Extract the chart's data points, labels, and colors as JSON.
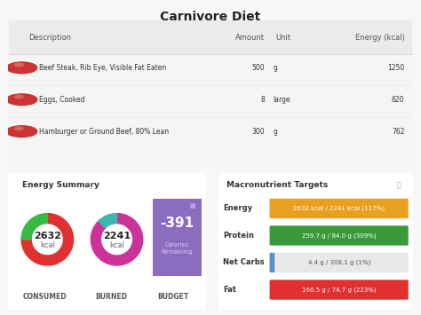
{
  "title": "Carnivore Diet",
  "bg_color": "#f7f7f7",
  "foods": [
    {
      "name": "Beef Steak, Rib Eye, Visible Fat Eaten",
      "amount": "500",
      "unit": "g",
      "energy": "1250"
    },
    {
      "name": "Eggs, Cooked",
      "amount": "8",
      "unit": "large",
      "energy": "620"
    },
    {
      "name": "Hamburger or Ground Beef, 80% Lean",
      "amount": "300",
      "unit": "g",
      "energy": "762"
    }
  ],
  "energy_summary_title": "Energy Summary",
  "consumed_kcal": "2632",
  "burned_kcal": "2241",
  "budget_kcal": "-391",
  "consumed_label": "CONSUMED",
  "burned_label": "BURNED",
  "budget_section_label": "BUDGET",
  "macro_title": "Macronutrient Targets",
  "macros": [
    {
      "label": "Energy",
      "text": "2632 kcal / 2241 kcal (117%)",
      "color": "#e8a020",
      "pct": 1.0,
      "text_color": "white"
    },
    {
      "label": "Protein",
      "text": "259.7 g / 84.0 g (309%)",
      "color": "#3a9a3a",
      "pct": 1.0,
      "text_color": "white"
    },
    {
      "label": "Net Carbs",
      "text": "4.4 g / 308.1 g (1%)",
      "color": "#e8e8e8",
      "pct": 0.014,
      "bar_color": "#5b8fc9",
      "text_color": "#555555"
    },
    {
      "label": "Fat",
      "text": "166.5 g / 74.7 g (223%)",
      "color": "#e03030",
      "pct": 1.0,
      "text_color": "white"
    }
  ],
  "consumed_ring_colors": [
    "#e03030",
    "#3ab844"
  ],
  "consumed_ring_angles": [
    270,
    90
  ],
  "burned_ring_colors": [
    "#cc3399",
    "#3ab8b0"
  ],
  "burned_ring_angles": [
    315,
    45
  ],
  "budget_bg": "#8b6cbf",
  "food_icon_color": "#cc3333",
  "panel_edge": "#dddddd",
  "panel_bg": "white",
  "table_bg": "#f5f5f5",
  "header_bg": "#ebebeb"
}
